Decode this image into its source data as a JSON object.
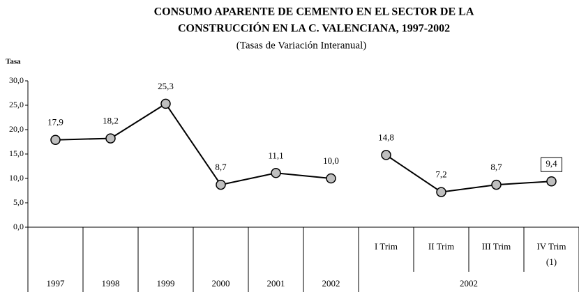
{
  "chart_data": {
    "type": "line",
    "title": [
      "CONSUMO APARENTE DE CEMENTO EN EL SECTOR DE LA",
      "CONSTRUCCIÓN EN LA C. VALENCIANA, 1997-2002"
    ],
    "subtitle": "(Tasas de Variación Interanual)",
    "y_label": "Tasa",
    "categories": [
      "1997",
      "1998",
      "1999",
      "2000",
      "2001",
      "2002",
      "I Trim",
      "II Trim",
      "III Trim",
      "IV Trim"
    ],
    "category_note": {
      "index": 9,
      "label": "(1)"
    },
    "group": {
      "label": "2002",
      "from": 6,
      "to": 9
    },
    "series": [
      {
        "color": "#000000",
        "marker_color": "#bfbfbf",
        "values": [
          17.9,
          18.2,
          25.3,
          8.7,
          11.1,
          10.0,
          null,
          null,
          null,
          null
        ],
        "value_labels": [
          "17,9",
          "18,2",
          "25,3",
          "8,7",
          "11,1",
          "10,0",
          null,
          null,
          null,
          null
        ]
      },
      {
        "color": "#000000",
        "marker_color": "#bfbfbf",
        "values": [
          null,
          null,
          null,
          null,
          null,
          null,
          14.8,
          7.2,
          8.7,
          9.4
        ],
        "value_labels": [
          null,
          null,
          null,
          null,
          null,
          null,
          "14,8",
          "7,2",
          "8,7",
          "9,4"
        ],
        "boxed_label_index": 9
      }
    ],
    "ylim": [
      0,
      30
    ],
    "yticks": [
      {
        "value": 0,
        "label": "0,0"
      },
      {
        "value": 5,
        "label": "5,0"
      },
      {
        "value": 10,
        "label": "10,0"
      },
      {
        "value": 15,
        "label": "15,0"
      },
      {
        "value": 20,
        "label": "20,0"
      },
      {
        "value": 25,
        "label": "25,0"
      },
      {
        "value": 30,
        "label": "30,0"
      }
    ]
  }
}
